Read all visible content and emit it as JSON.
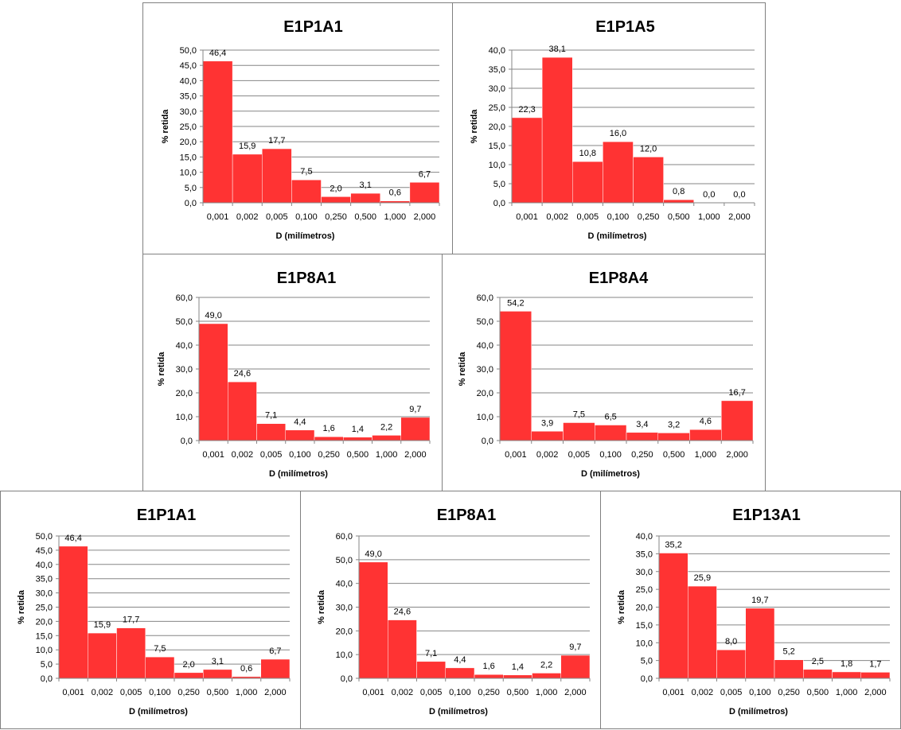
{
  "chart_data": [
    {
      "type": "bar",
      "title": "E1P1A1",
      "xlabel": "D (milímetros)",
      "ylabel": "% retida",
      "categories": [
        "0,001",
        "0,002",
        "0,005",
        "0,100",
        "0,250",
        "0,500",
        "1,000",
        "2,000"
      ],
      "values": [
        46.4,
        15.9,
        17.7,
        7.5,
        2.0,
        3.1,
        0.6,
        6.7
      ],
      "value_labels": [
        "46,4",
        "15,9",
        "17,7",
        "7,5",
        "2,0",
        "3,1",
        "0,6",
        "6,7"
      ],
      "ylim": [
        0,
        50
      ],
      "yticks": [
        "0,0",
        "5,0",
        "10,0",
        "15,0",
        "20,0",
        "25,0",
        "30,0",
        "35,0",
        "40,0",
        "45,0",
        "50,0"
      ],
      "grid": true,
      "bar_color": "#ff3333"
    },
    {
      "type": "bar",
      "title": "E1P1A5",
      "xlabel": "D (milímetros)",
      "ylabel": "% retida",
      "categories": [
        "0,001",
        "0,002",
        "0,005",
        "0,100",
        "0,250",
        "0,500",
        "1,000",
        "2,000"
      ],
      "values": [
        22.3,
        38.1,
        10.8,
        16.0,
        12.0,
        0.8,
        0.0,
        0.0
      ],
      "value_labels": [
        "22,3",
        "38,1",
        "10,8",
        "16,0",
        "12,0",
        "0,8",
        "0,0",
        "0,0"
      ],
      "ylim": [
        0,
        40
      ],
      "yticks": [
        "0,0",
        "5,0",
        "10,0",
        "15,0",
        "20,0",
        "25,0",
        "30,0",
        "35,0",
        "40,0"
      ],
      "grid": true,
      "bar_color": "#ff3333"
    },
    {
      "type": "bar",
      "title": "E1P8A1",
      "xlabel": "D (milímetros)",
      "ylabel": "% retida",
      "categories": [
        "0,001",
        "0,002",
        "0,005",
        "0,100",
        "0,250",
        "0,500",
        "1,000",
        "2,000"
      ],
      "values": [
        49.0,
        24.6,
        7.1,
        4.4,
        1.6,
        1.4,
        2.2,
        9.7
      ],
      "value_labels": [
        "49,0",
        "24,6",
        "7,1",
        "4,4",
        "1,6",
        "1,4",
        "2,2",
        "9,7"
      ],
      "ylim": [
        0,
        60
      ],
      "yticks": [
        "0,0",
        "10,0",
        "20,0",
        "30,0",
        "40,0",
        "50,0",
        "60,0"
      ],
      "grid": true,
      "bar_color": "#ff3333"
    },
    {
      "type": "bar",
      "title": "E1P8A4",
      "xlabel": "D (milímetros)",
      "ylabel": "% retida",
      "categories": [
        "0,001",
        "0,002",
        "0,005",
        "0,100",
        "0,250",
        "0,500",
        "1,000",
        "2,000"
      ],
      "values": [
        54.2,
        3.9,
        7.5,
        6.5,
        3.4,
        3.2,
        4.6,
        16.7
      ],
      "value_labels": [
        "54,2",
        "3,9",
        "7,5",
        "6,5",
        "3,4",
        "3,2",
        "4,6",
        "16,7"
      ],
      "ylim": [
        0,
        60
      ],
      "yticks": [
        "0,0",
        "10,0",
        "20,0",
        "30,0",
        "40,0",
        "50,0",
        "60,0"
      ],
      "grid": true,
      "bar_color": "#ff3333"
    },
    {
      "type": "bar",
      "title": "E1P1A1",
      "xlabel": "D (milímetros)",
      "ylabel": "% retida",
      "categories": [
        "0,001",
        "0,002",
        "0,005",
        "0,100",
        "0,250",
        "0,500",
        "1,000",
        "2,000"
      ],
      "values": [
        46.4,
        15.9,
        17.7,
        7.5,
        2.0,
        3.1,
        0.6,
        6.7
      ],
      "value_labels": [
        "46,4",
        "15,9",
        "17,7",
        "7,5",
        "2,0",
        "3,1",
        "0,6",
        "6,7"
      ],
      "ylim": [
        0,
        50
      ],
      "yticks": [
        "0,0",
        "5,0",
        "10,0",
        "15,0",
        "20,0",
        "25,0",
        "30,0",
        "35,0",
        "40,0",
        "45,0",
        "50,0"
      ],
      "grid": true,
      "bar_color": "#ff3333"
    },
    {
      "type": "bar",
      "title": "E1P8A1",
      "xlabel": "D (milímetros)",
      "ylabel": "% retida",
      "categories": [
        "0,001",
        "0,002",
        "0,005",
        "0,100",
        "0,250",
        "0,500",
        "1,000",
        "2,000"
      ],
      "values": [
        49.0,
        24.6,
        7.1,
        4.4,
        1.6,
        1.4,
        2.2,
        9.7
      ],
      "value_labels": [
        "49,0",
        "24,6",
        "7,1",
        "4,4",
        "1,6",
        "1,4",
        "2,2",
        "9,7"
      ],
      "ylim": [
        0,
        60
      ],
      "yticks": [
        "0,0",
        "10,0",
        "20,0",
        "30,0",
        "40,0",
        "50,0",
        "60,0"
      ],
      "grid": true,
      "bar_color": "#ff3333"
    },
    {
      "type": "bar",
      "title": "E1P13A1",
      "xlabel": "D (milímetros)",
      "ylabel": "% retida",
      "categories": [
        "0,001",
        "0,002",
        "0,005",
        "0,100",
        "0,250",
        "0,500",
        "1,000",
        "2,000"
      ],
      "values": [
        35.2,
        25.9,
        8.0,
        19.7,
        5.2,
        2.5,
        1.8,
        1.7
      ],
      "value_labels": [
        "35,2",
        "25,9",
        "8,0",
        "19,7",
        "5,2",
        "2,5",
        "1,8",
        "1,7"
      ],
      "ylim": [
        0,
        40
      ],
      "yticks": [
        "0,0",
        "5,0",
        "10,0",
        "15,0",
        "20,0",
        "25,0",
        "30,0",
        "35,0",
        "40,0"
      ],
      "grid": true,
      "bar_color": "#ff3333"
    }
  ]
}
